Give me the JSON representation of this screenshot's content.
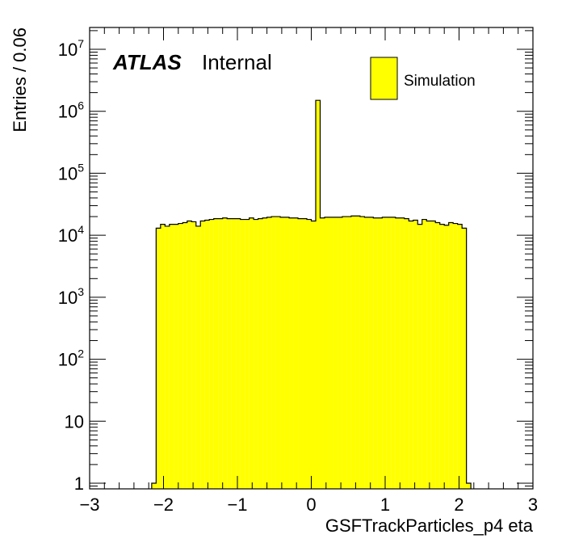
{
  "chart_data": {
    "type": "bar",
    "subtype": "histogram",
    "xlabel": "GSFTrackParticles_p4 eta",
    "ylabel": "Entries / 0.06",
    "xlim": [
      -3,
      3
    ],
    "ylim": [
      0.8,
      22000000
    ],
    "yscale": "log",
    "bin_width": 0.06,
    "x_ticks": [
      "−3",
      "−2",
      "−1",
      "0",
      "1",
      "2",
      "3"
    ],
    "y_ticks": [
      {
        "base": "1",
        "exp": ""
      },
      {
        "base": "10",
        "exp": ""
      },
      {
        "base": "10",
        "exp": "2"
      },
      {
        "base": "10",
        "exp": "3"
      },
      {
        "base": "10",
        "exp": "4"
      },
      {
        "base": "10",
        "exp": "5"
      },
      {
        "base": "10",
        "exp": "6"
      },
      {
        "base": "10",
        "exp": "7"
      }
    ],
    "fill_color": "#ffff00",
    "line_color": "#000000",
    "grid": false,
    "legend_position": "top-right",
    "series": [
      {
        "name": "Simulation",
        "bin_edges_start": -2.16,
        "values": [
          1.0,
          13000,
          15000,
          14000,
          15000,
          15000,
          15500,
          16000,
          17000,
          16500,
          14000,
          17000,
          17500,
          18000,
          18500,
          18500,
          19000,
          18500,
          18500,
          18500,
          18000,
          18000,
          19000,
          18000,
          18500,
          19000,
          19500,
          20000,
          20000,
          19500,
          19500,
          19000,
          19000,
          18500,
          18500,
          18000,
          17000,
          1500000,
          19000,
          19500,
          19500,
          19500,
          19500,
          20000,
          20000,
          20500,
          20500,
          20000,
          19500,
          19500,
          19000,
          19000,
          19500,
          19500,
          19500,
          19000,
          19000,
          18500,
          17000,
          17500,
          15000,
          18000,
          17000,
          17000,
          16000,
          15000,
          14500,
          16000,
          15500,
          15000,
          13000,
          1.0
        ]
      }
    ],
    "annotations": {
      "atlas": "ATLAS",
      "internal": "Internal"
    }
  }
}
